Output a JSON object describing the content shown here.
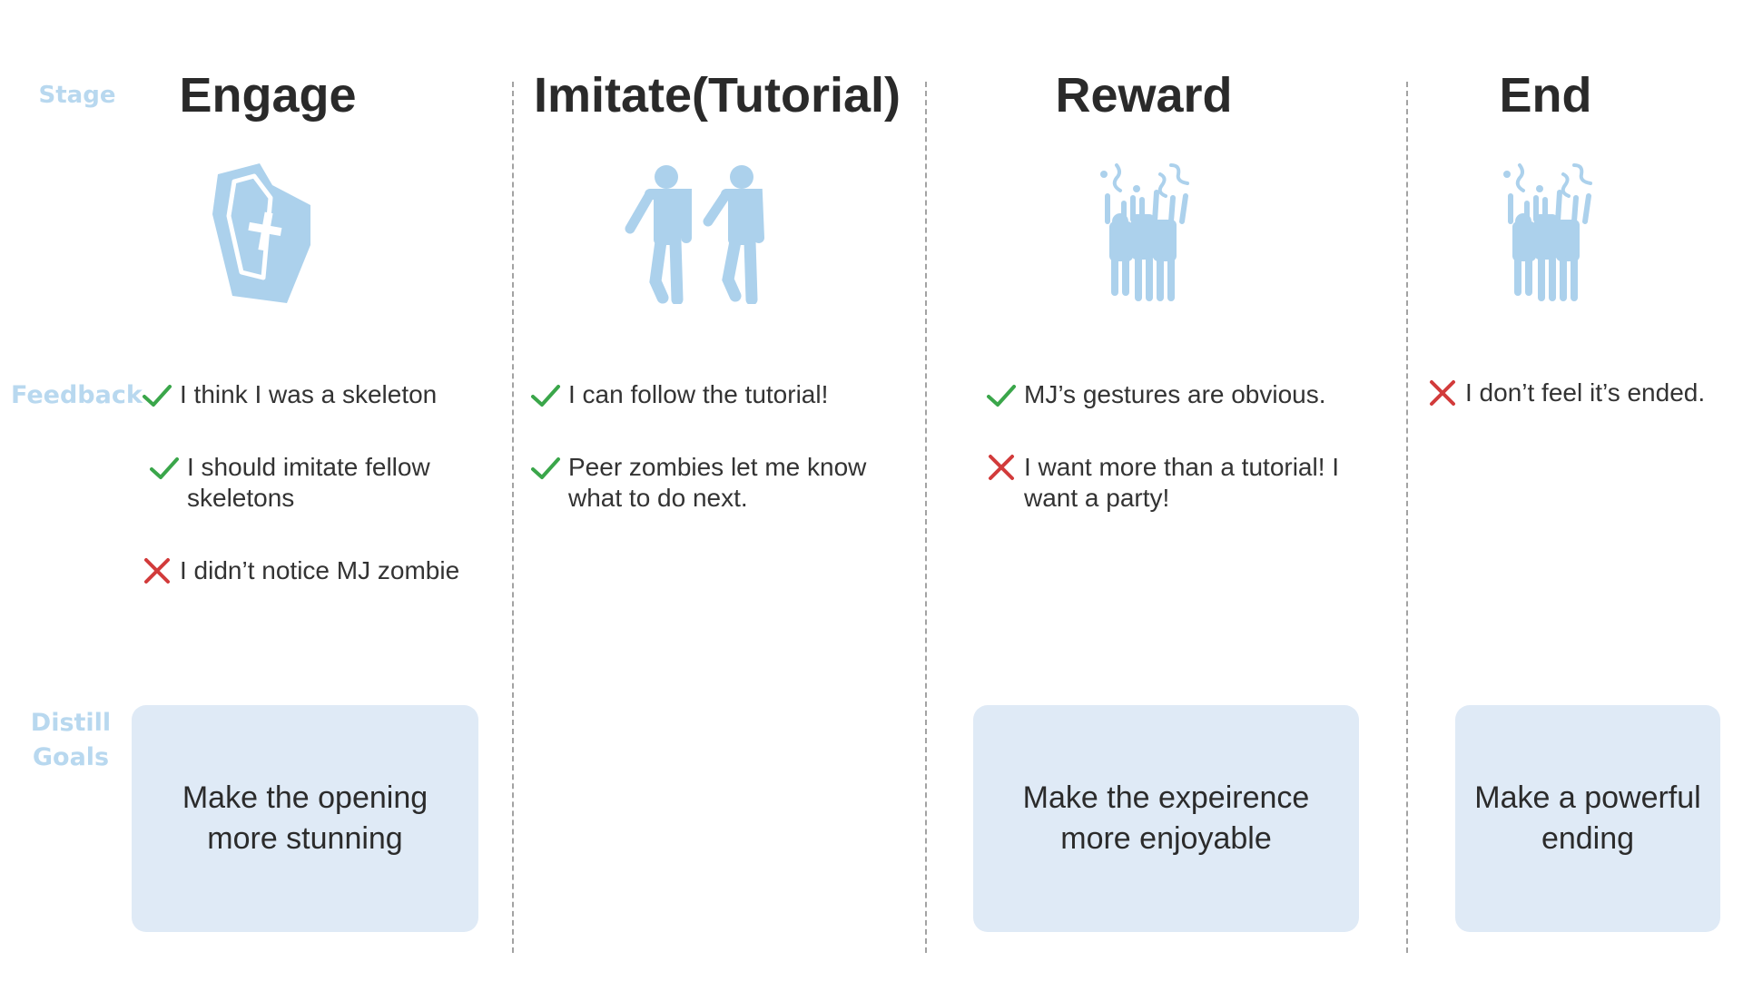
{
  "row_labels": {
    "stage": "Stage",
    "feedback": "Feedback",
    "distill_line1": "Distill",
    "distill_line2": "Goals"
  },
  "stages": [
    {
      "title": "Engage",
      "icon": "coffin-icon",
      "feedback": [
        {
          "type": "positive",
          "text": "I think I was a skeleton"
        },
        {
          "type": "positive",
          "text": "I should imitate fellow skeletons"
        },
        {
          "type": "negative",
          "text": "I didn’t notice MJ zombie"
        }
      ],
      "goal": "Make the opening more stunning"
    },
    {
      "title": "Imitate(Tutorial)",
      "icon": "two-zombies-icon",
      "feedback": [
        {
          "type": "positive",
          "text": "I can follow the tutorial!"
        },
        {
          "type": "positive",
          "text": "Peer zombies let me know what to do next."
        }
      ],
      "goal": ""
    },
    {
      "title": "Reward",
      "icon": "zombie-crowd-icon",
      "feedback": [
        {
          "type": "positive",
          "text": "MJ’s gestures are obvious."
        },
        {
          "type": "negative",
          "text": "I want more than a tutorial! I want a party!"
        }
      ],
      "goal": "Make the expeirence more enjoyable"
    },
    {
      "title": "End",
      "icon": "zombie-crowd-icon",
      "feedback": [
        {
          "type": "negative",
          "text": "I don’t feel it’s ended."
        }
      ],
      "goal": "Make a powerful ending"
    }
  ],
  "colors": {
    "icon_blue": "#acd1ec",
    "label_blue": "#b8d8ef",
    "check_green": "#3aa64a",
    "cross_red": "#d23b3b",
    "goal_bg": "#dfeaf6",
    "divider": "#a3a3a3"
  }
}
